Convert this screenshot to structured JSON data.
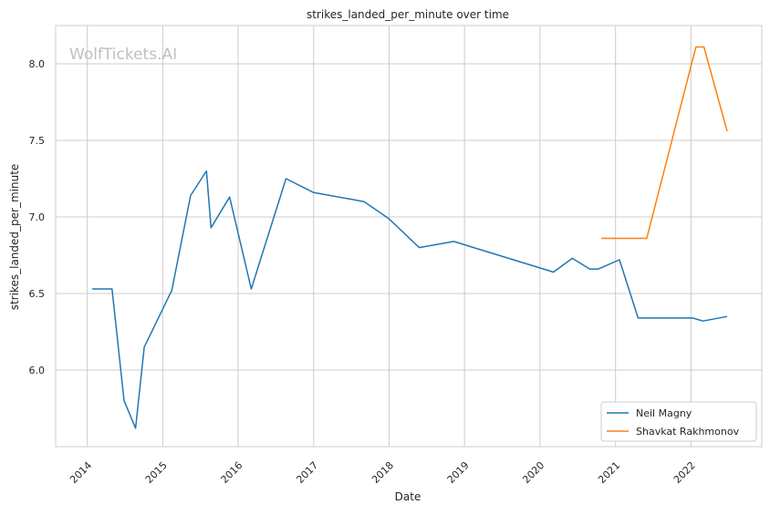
{
  "chart_data": {
    "type": "line",
    "title": "strikes_landed_per_minute over time",
    "xlabel": "Date",
    "ylabel": "strikes_landed_per_minute",
    "watermark": "WolfTickets.AI",
    "x_range": [
      "2013-08-01",
      "2022-12-10"
    ],
    "ylim": [
      5.5,
      8.25
    ],
    "x_ticks": [
      "2014",
      "2015",
      "2016",
      "2017",
      "2018",
      "2019",
      "2020",
      "2021",
      "2022"
    ],
    "y_ticks": [
      "6.0",
      "6.5",
      "7.0",
      "7.5",
      "8.0"
    ],
    "grid": true,
    "legend_position": "lower right",
    "series": [
      {
        "name": "Neil Magny",
        "color": "#1f77b4",
        "x": [
          "2014-01-25",
          "2014-05-01",
          "2014-06-28",
          "2014-08-23",
          "2014-10-04",
          "2015-02-14",
          "2015-05-16",
          "2015-08-01",
          "2015-08-23",
          "2015-11-21",
          "2016-03-05",
          "2016-08-20",
          "2016-12-30",
          "2017-09-02",
          "2017-12-30",
          "2018-05-27",
          "2018-11-10",
          "2020-03-07",
          "2020-06-06",
          "2020-08-29",
          "2020-10-10",
          "2021-01-20",
          "2021-04-20",
          "2022-01-10",
          "2022-02-28",
          "2022-06-25"
        ],
        "y": [
          6.53,
          6.53,
          5.8,
          5.62,
          6.15,
          6.52,
          7.14,
          7.3,
          6.93,
          7.13,
          6.53,
          7.25,
          7.16,
          7.1,
          6.99,
          6.8,
          6.84,
          6.64,
          6.73,
          6.66,
          6.66,
          6.72,
          6.34,
          6.34,
          6.32,
          6.35
        ]
      },
      {
        "name": "Shavkat Rakhmonov",
        "color": "#ff7f0e",
        "x": [
          "2020-10-24",
          "2021-06-01",
          "2022-01-25",
          "2022-03-05",
          "2022-06-25"
        ],
        "y": [
          6.86,
          6.86,
          8.11,
          8.11,
          7.56
        ]
      }
    ]
  }
}
